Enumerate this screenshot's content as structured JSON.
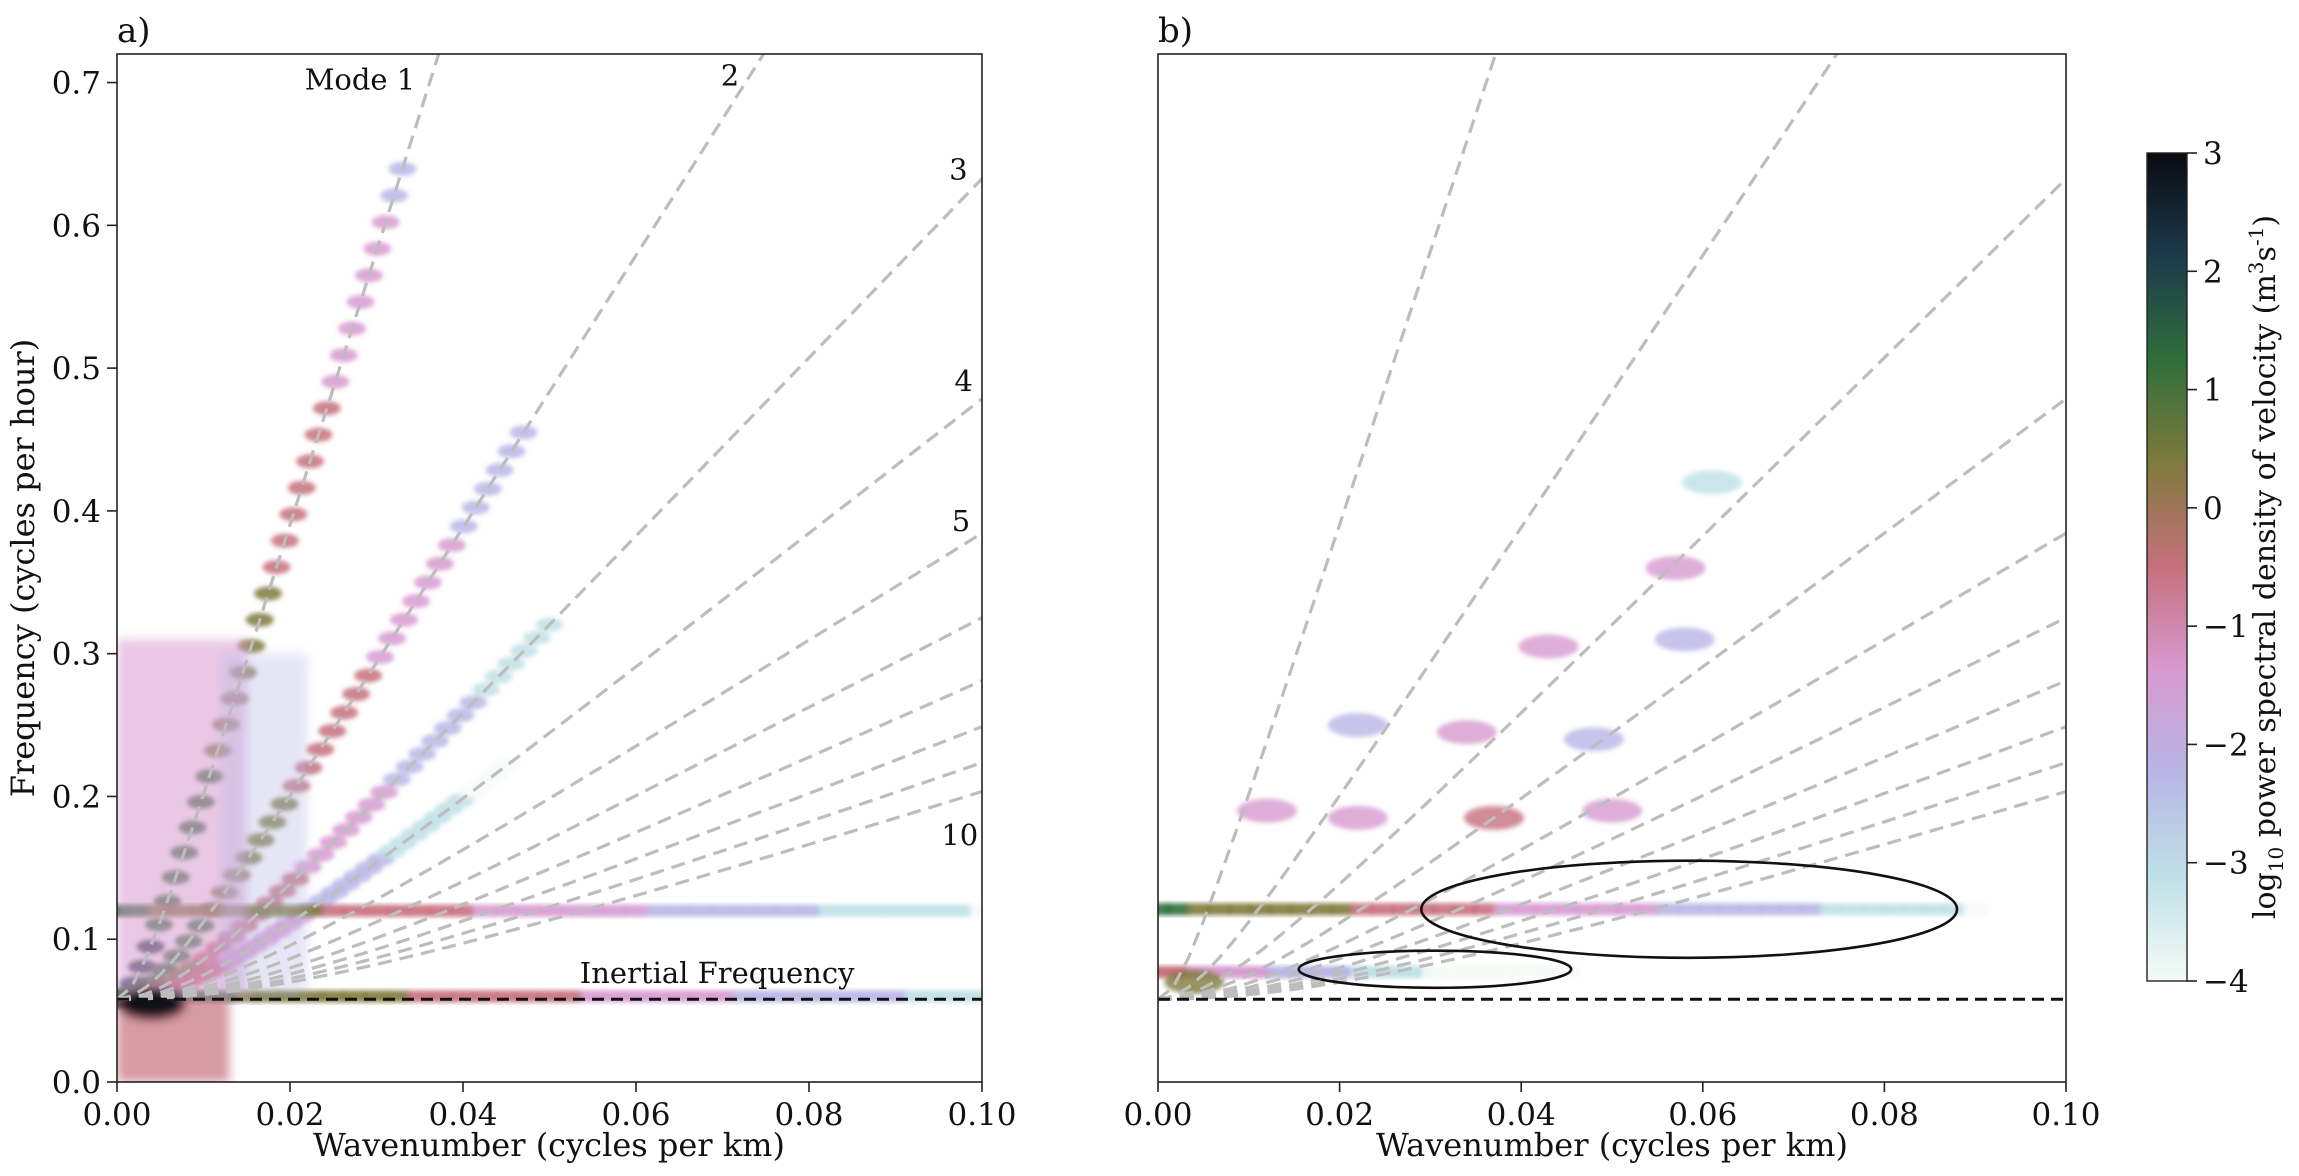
{
  "figure": {
    "colors": {
      "mode_line": "#bdbdbd",
      "inertial_line": "#111111",
      "ellipse": "#111111",
      "axis": "#222222"
    }
  },
  "colorbar": {
    "label_prefix": "log",
    "label_sub": "10",
    "label_main": " power spectral density of velocity (m",
    "label_sup1": "3",
    "label_mid": "s",
    "label_sup2": "-1",
    "label_end": ")",
    "range": [
      -4,
      3
    ],
    "ticks": [
      "3",
      "2",
      "1",
      "0",
      "−1",
      "−2",
      "−3",
      "−4"
    ],
    "tick_values": [
      3,
      2,
      1,
      0,
      -1,
      -2,
      -3,
      -4
    ],
    "colormap": [
      "#f5fbf7",
      "#bfe1e6",
      "#b8b6e6",
      "#d79ad0",
      "#c6707d",
      "#7f7a3c",
      "#2f6e3b",
      "#1c3a4c",
      "#0a0a10"
    ]
  },
  "chart_data": [
    {
      "type": "heatmap",
      "panel_label": "a)",
      "xlabel": "Wavenumber (cycles per km)",
      "ylabel": "Frequency (cycles per hour)",
      "xlim": [
        0,
        0.1
      ],
      "ylim": [
        0,
        0.72
      ],
      "xticks": [
        0,
        0.02,
        0.04,
        0.06,
        0.08,
        0.1
      ],
      "xtick_labels": [
        "0.00",
        "0.02",
        "0.04",
        "0.06",
        "0.08",
        "0.10"
      ],
      "yticks": [
        0,
        0.1,
        0.2,
        0.3,
        0.4,
        0.5,
        0.6,
        0.7
      ],
      "ytick_labels": [
        "0.0",
        "0.1",
        "0.2",
        "0.3",
        "0.4",
        "0.5",
        "0.6",
        "0.7"
      ],
      "inertial_frequency": 0.058,
      "inertial_label": "Inertial Frequency",
      "mode_lines": [
        {
          "mode": 1,
          "label": "Mode 1",
          "slope": 19.3
        },
        {
          "mode": 2,
          "label": "2",
          "slope": 9.6
        },
        {
          "mode": 3,
          "label": "3",
          "slope": 6.3
        },
        {
          "mode": 4,
          "label": "4",
          "slope": 4.75
        },
        {
          "mode": 5,
          "label": "5",
          "slope": 3.8
        },
        {
          "mode": 6,
          "label": "",
          "slope": 3.2
        },
        {
          "mode": 7,
          "label": "",
          "slope": 2.75
        },
        {
          "mode": 8,
          "label": "",
          "slope": 2.42
        },
        {
          "mode": 9,
          "label": "",
          "slope": 2.16
        },
        {
          "mode": 10,
          "label": "10",
          "slope": 1.95
        }
      ],
      "energy_ridges": [
        {
          "mode": 1,
          "k_max": 0.033,
          "peak": 2.2
        },
        {
          "mode": 2,
          "k_max": 0.047,
          "peak": 1.7
        },
        {
          "mode": 3,
          "k_max": 0.05,
          "peak": 0.8
        },
        {
          "mode": 4,
          "k_max": 0.045,
          "peak": 0.2
        }
      ],
      "horizontal_bands": [
        {
          "frequency": 0.12,
          "k_max": 0.1,
          "peak": 1.0
        },
        {
          "frequency": 0.06,
          "k_max": 0.1,
          "peak": 1.5
        }
      ],
      "ellipses": []
    },
    {
      "type": "heatmap",
      "panel_label": "b)",
      "xlabel": "Wavenumber (cycles per km)",
      "ylabel": "",
      "xlim": [
        0,
        0.1
      ],
      "ylim": [
        0,
        0.72
      ],
      "xticks": [
        0,
        0.02,
        0.04,
        0.06,
        0.08,
        0.1
      ],
      "xtick_labels": [
        "0.00",
        "0.02",
        "0.04",
        "0.06",
        "0.08",
        "0.10"
      ],
      "yticks": [],
      "ytick_labels": [],
      "inertial_frequency": 0.058,
      "inertial_label": "",
      "mode_lines": [
        {
          "mode": 1,
          "label": "",
          "slope": 19.3
        },
        {
          "mode": 2,
          "label": "",
          "slope": 9.6
        },
        {
          "mode": 3,
          "label": "",
          "slope": 6.3
        },
        {
          "mode": 4,
          "label": "",
          "slope": 4.75
        },
        {
          "mode": 5,
          "label": "",
          "slope": 3.8
        },
        {
          "mode": 6,
          "label": "",
          "slope": 3.2
        },
        {
          "mode": 7,
          "label": "",
          "slope": 2.75
        },
        {
          "mode": 8,
          "label": "",
          "slope": 2.42
        },
        {
          "mode": 9,
          "label": "",
          "slope": 2.16
        },
        {
          "mode": 10,
          "label": "",
          "slope": 1.95
        }
      ],
      "energy_ridges": [],
      "horizontal_bands": [
        {
          "frequency": 0.121,
          "k_max": 0.09,
          "peak": 1.0
        },
        {
          "frequency": 0.077,
          "k_max": 0.045,
          "peak": -0.5
        }
      ],
      "blobs": [
        {
          "k": 0.004,
          "f": 0.07,
          "peak": 0.6
        },
        {
          "k": 0.012,
          "f": 0.19,
          "peak": -1.2
        },
        {
          "k": 0.022,
          "f": 0.185,
          "peak": -1.3
        },
        {
          "k": 0.037,
          "f": 0.185,
          "peak": -0.8
        },
        {
          "k": 0.05,
          "f": 0.19,
          "peak": -1.8
        },
        {
          "k": 0.022,
          "f": 0.25,
          "peak": -2.2
        },
        {
          "k": 0.034,
          "f": 0.245,
          "peak": -1.4
        },
        {
          "k": 0.048,
          "f": 0.24,
          "peak": -2.0
        },
        {
          "k": 0.043,
          "f": 0.305,
          "peak": -1.7
        },
        {
          "k": 0.058,
          "f": 0.31,
          "peak": -2.5
        },
        {
          "k": 0.057,
          "f": 0.36,
          "peak": -1.6
        },
        {
          "k": 0.061,
          "f": 0.42,
          "peak": -2.8
        }
      ],
      "ellipses": [
        {
          "center_k": 0.0305,
          "center_f": 0.079,
          "width_k": 0.03,
          "height_f": 0.026
        },
        {
          "center_k": 0.0585,
          "center_f": 0.121,
          "width_k": 0.059,
          "height_f": 0.068
        }
      ]
    }
  ]
}
